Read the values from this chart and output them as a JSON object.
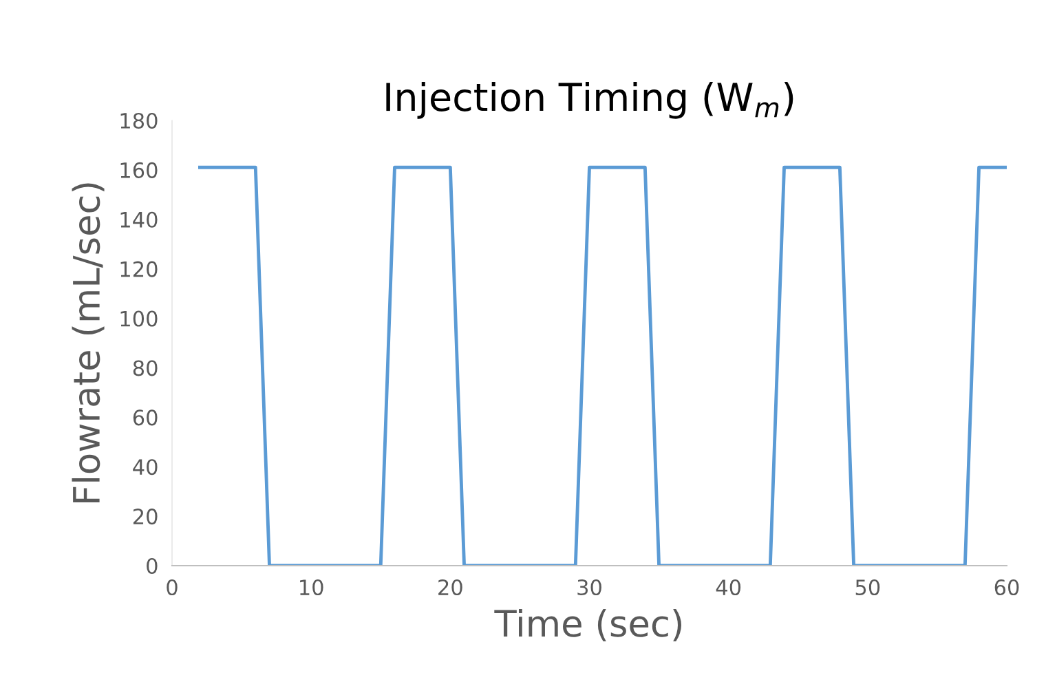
{
  "chart_data": {
    "type": "line",
    "title": "Injection Timing (W$_{m}$)",
    "xlabel": "Time (sec)",
    "ylabel": "Flowrate (mL/sec)",
    "x": [
      2,
      3,
      4,
      5,
      6,
      7,
      8,
      9,
      10,
      11,
      12,
      13,
      14,
      15,
      16,
      17,
      18,
      19,
      20,
      21,
      22,
      23,
      24,
      25,
      26,
      27,
      28,
      29,
      30,
      31,
      32,
      33,
      34,
      35,
      36,
      37,
      38,
      39,
      40,
      41,
      42,
      43,
      44,
      45,
      46,
      47,
      48,
      49,
      50,
      51,
      52,
      53,
      54,
      55,
      56,
      57,
      58,
      59,
      60
    ],
    "series": [
      {
        "color": "#5b9bd5",
        "values": [
          161,
          161,
          161,
          161,
          161,
          0,
          0,
          0,
          0,
          0,
          0,
          0,
          0,
          0,
          161,
          161,
          161,
          161,
          161,
          0,
          0,
          0,
          0,
          0,
          0,
          0,
          0,
          0,
          161,
          161,
          161,
          161,
          161,
          0,
          0,
          0,
          0,
          0,
          0,
          0,
          0,
          0,
          161,
          161,
          161,
          161,
          161,
          0,
          0,
          0,
          0,
          0,
          0,
          0,
          0,
          0,
          161,
          161,
          161
        ]
      }
    ],
    "xlim": [
      0,
      60
    ],
    "xticks": [
      0,
      10,
      20,
      30,
      40,
      50,
      60
    ],
    "ylim": [
      0,
      180
    ],
    "yticks": [
      0,
      20,
      40,
      60,
      80,
      100,
      120,
      140,
      160,
      180
    ],
    "grid": false,
    "legend": false,
    "marker": "none",
    "line_style": "solid"
  }
}
